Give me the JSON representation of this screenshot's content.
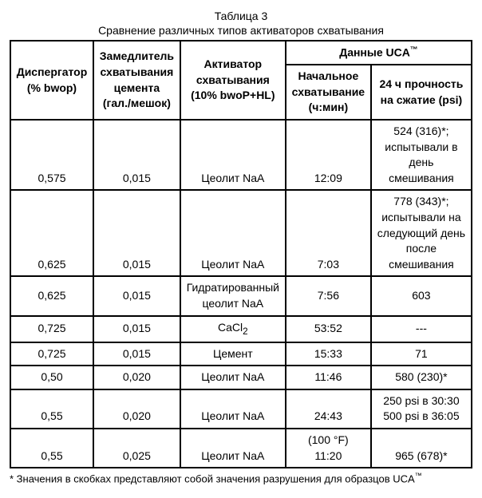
{
  "title": "Таблица 3",
  "subtitle": "Сравнение различных типов активаторов схватывания",
  "headers": {
    "dispersant_l1": "Диспергатор",
    "dispersant_l2": "(% bwop)",
    "retarder_l1": "Замедлитель",
    "retarder_l2": "схватывания",
    "retarder_l3": "цемента",
    "retarder_l4": "(гал./мешок)",
    "activator_l1": "Активатор",
    "activator_l2": "схватывания",
    "activator_l3": "(10% bwoP+HL)",
    "uca": "Данные UCA",
    "uca_tm": "™",
    "initial_l1": "Начальное",
    "initial_l2": "схватывание",
    "initial_l3": "(ч:мин)",
    "strength_l1": "24 ч прочность",
    "strength_l2": "на сжатие (psi)"
  },
  "rows": [
    {
      "d": "0,575",
      "r": "0,015",
      "a": "Цеолит NaA",
      "i": "12:09",
      "s": "524 (316)*;<br>испытывали в<br>день<br>смешивания"
    },
    {
      "d": "0,625",
      "r": "0,015",
      "a": "Цеолит NaA",
      "i": "7:03",
      "s": "778 (343)*;<br>испытывали на<br>следующий день<br>после<br>смешивания"
    },
    {
      "d": "0,625",
      "r": "0,015",
      "a": "Гидратированный<br>цеолит NaA",
      "i": "7:56",
      "s": "603"
    },
    {
      "d": "0,725",
      "r": "0,015",
      "a": "CaCl<sub>2</sub>",
      "i": "53:52",
      "s": "---"
    },
    {
      "d": "0,725",
      "r": "0,015",
      "a": "Цемент",
      "i": "15:33",
      "s": "71"
    },
    {
      "d": "0,50",
      "r": "0,020",
      "a": "Цеолит NaA",
      "i": "11:46",
      "s": "580 (230)*"
    },
    {
      "d": "0,55",
      "r": "0,020",
      "a": "Цеолит NaA",
      "i": "24:43",
      "s": "250 psi в 30:30<br>500 psi в 36:05"
    },
    {
      "d": "0,55",
      "r": "0,025",
      "a": "Цеолит NaA",
      "i": "(100 °F)<br>11:20",
      "s": "965 (678)*"
    }
  ],
  "footnote_pre": "* Значения в скобках представляют собой значения разрушения для образцов UCA",
  "footnote_tm": "™"
}
